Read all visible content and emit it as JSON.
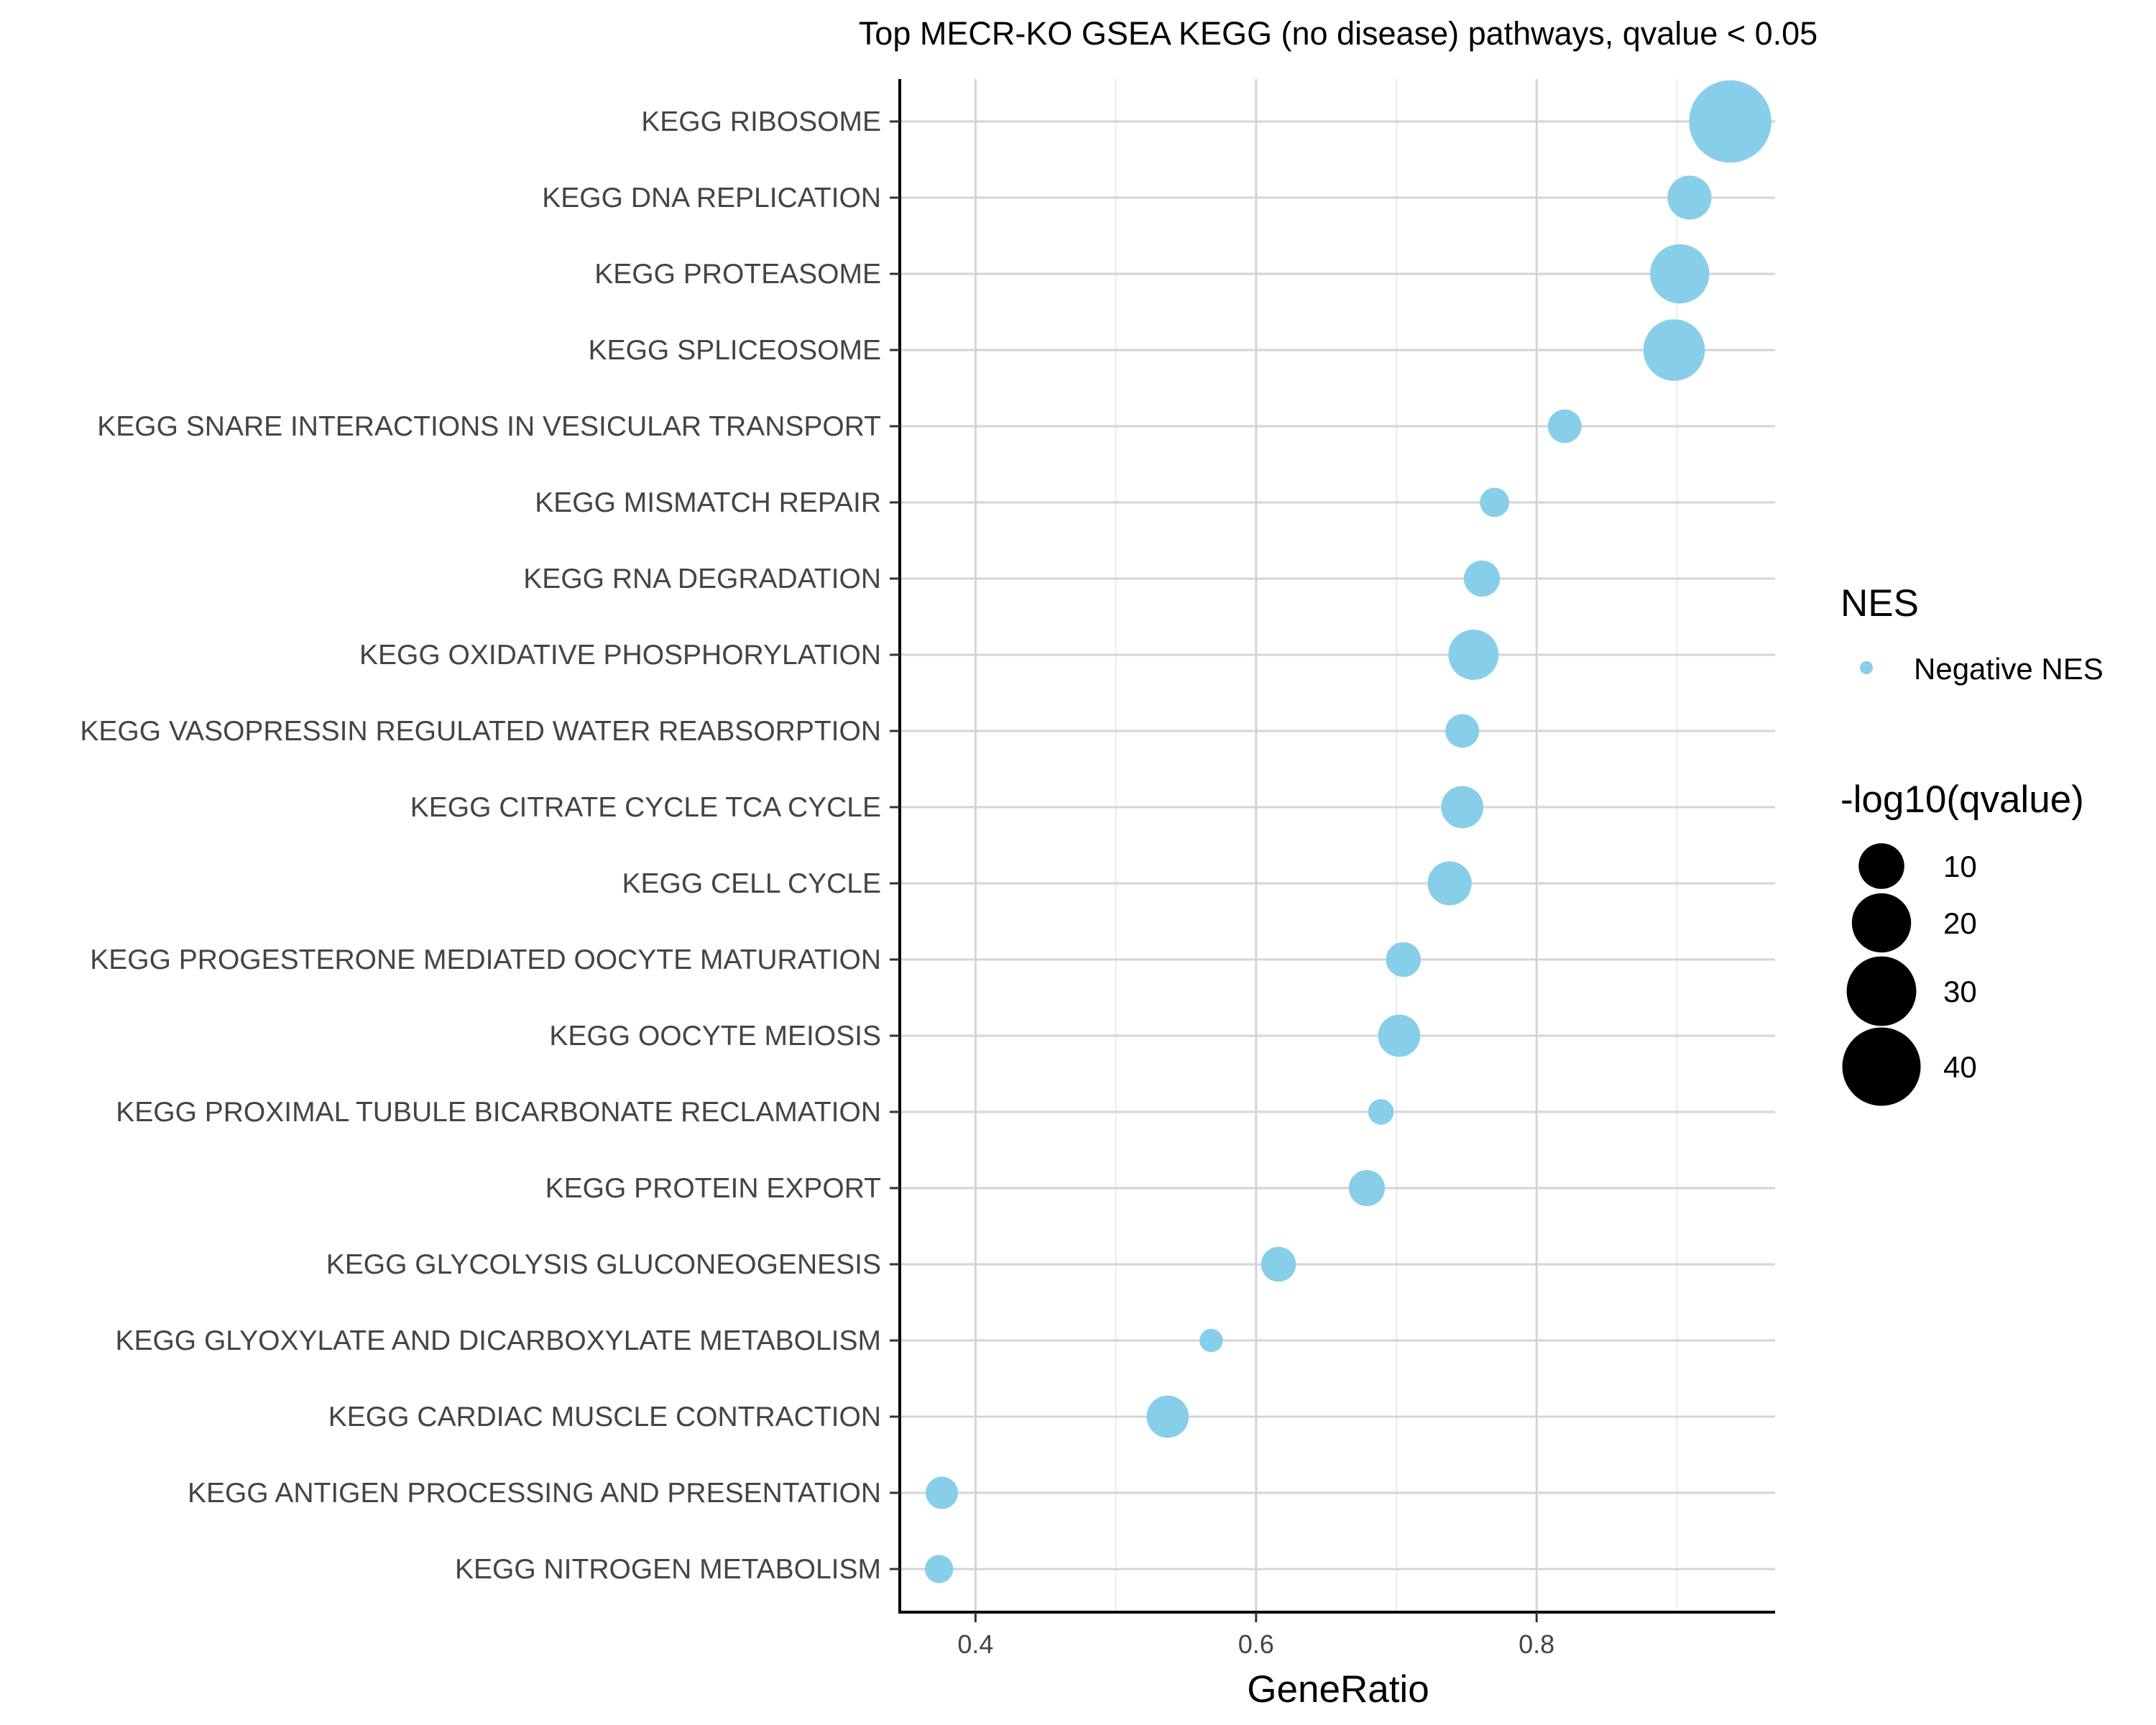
{
  "chart_data": {
    "type": "scatter",
    "title": "Top MECR-KO GSEA KEGG (no disease) pathways, qvalue < 0.05",
    "xlabel": "GeneRatio",
    "ylabel": "",
    "xlim": [
      0.346,
      0.97
    ],
    "xticks": [
      0.4,
      0.6,
      0.8
    ],
    "xtick_labels": [
      "0.4",
      "0.6",
      "0.8"
    ],
    "grid": true,
    "color": "#87CEEB",
    "legend_position": "right",
    "color_legend": {
      "title": "NES",
      "entries": [
        {
          "label": "Negative NES",
          "color": "#87CEEB"
        }
      ]
    },
    "size_legend": {
      "title": "-log10(qvalue)",
      "entries": [
        {
          "label": "10",
          "value": 10
        },
        {
          "label": "20",
          "value": 20
        },
        {
          "label": "30",
          "value": 30
        },
        {
          "label": "40",
          "value": 40
        }
      ]
    },
    "categories": [
      "KEGG RIBOSOME",
      "KEGG DNA REPLICATION",
      "KEGG PROTEASOME",
      "KEGG SPLICEOSOME",
      "KEGG SNARE INTERACTIONS IN VESICULAR TRANSPORT",
      "KEGG MISMATCH REPAIR",
      "KEGG RNA DEGRADATION",
      "KEGG OXIDATIVE PHOSPHORYLATION",
      "KEGG VASOPRESSIN REGULATED WATER REABSORPTION",
      "KEGG CITRATE CYCLE TCA CYCLE",
      "KEGG CELL CYCLE",
      "KEGG PROGESTERONE MEDIATED OOCYTE MATURATION",
      "KEGG OOCYTE MEIOSIS",
      "KEGG PROXIMAL TUBULE BICARBONATE RECLAMATION",
      "KEGG PROTEIN EXPORT",
      "KEGG GLYCOLYSIS GLUCONEOGENESIS",
      "KEGG GLYOXYLATE AND DICARBOXYLATE METABOLISM",
      "KEGG CARDIAC MUSCLE CONTRACTION",
      "KEGG ANTIGEN PROCESSING AND PRESENTATION",
      "KEGG NITROGEN METABOLISM"
    ],
    "series": [
      {
        "points": [
          {
            "pathway": "KEGG RIBOSOME",
            "gene_ratio": 0.938,
            "neg_log10_qvalue": 45
          },
          {
            "pathway": "KEGG DNA REPLICATION",
            "gene_ratio": 0.909,
            "neg_log10_qvalue": 9
          },
          {
            "pathway": "KEGG PROTEASOME",
            "gene_ratio": 0.902,
            "neg_log10_qvalue": 20
          },
          {
            "pathway": "KEGG SPLICEOSOME",
            "gene_ratio": 0.898,
            "neg_log10_qvalue": 22
          },
          {
            "pathway": "KEGG SNARE INTERACTIONS IN VESICULAR TRANSPORT",
            "gene_ratio": 0.82,
            "neg_log10_qvalue": 4
          },
          {
            "pathway": "KEGG MISMATCH REPAIR",
            "gene_ratio": 0.77,
            "neg_log10_qvalue": 2.5
          },
          {
            "pathway": "KEGG RNA DEGRADATION",
            "gene_ratio": 0.761,
            "neg_log10_qvalue": 5
          },
          {
            "pathway": "KEGG OXIDATIVE PHOSPHORYLATION",
            "gene_ratio": 0.755,
            "neg_log10_qvalue": 13
          },
          {
            "pathway": "KEGG VASOPRESSIN REGULATED WATER REABSORPTION",
            "gene_ratio": 0.747,
            "neg_log10_qvalue": 4
          },
          {
            "pathway": "KEGG CITRATE CYCLE TCA CYCLE",
            "gene_ratio": 0.747,
            "neg_log10_qvalue": 8
          },
          {
            "pathway": "KEGG CELL CYCLE",
            "gene_ratio": 0.738,
            "neg_log10_qvalue": 9
          },
          {
            "pathway": "KEGG PROGESTERONE MEDIATED OOCYTE MATURATION",
            "gene_ratio": 0.705,
            "neg_log10_qvalue": 4.5
          },
          {
            "pathway": "KEGG OOCYTE MEIOSIS",
            "gene_ratio": 0.702,
            "neg_log10_qvalue": 8
          },
          {
            "pathway": "KEGG PROXIMAL TUBULE BICARBONATE RECLAMATION",
            "gene_ratio": 0.689,
            "neg_log10_qvalue": 1.5
          },
          {
            "pathway": "KEGG PROTEIN EXPORT",
            "gene_ratio": 0.679,
            "neg_log10_qvalue": 5
          },
          {
            "pathway": "KEGG GLYCOLYSIS GLUCONEOGENESIS",
            "gene_ratio": 0.616,
            "neg_log10_qvalue": 4.5
          },
          {
            "pathway": "KEGG GLYOXYLATE AND DICARBOXYLATE METABOLISM",
            "gene_ratio": 0.568,
            "neg_log10_qvalue": 1
          },
          {
            "pathway": "KEGG CARDIAC MUSCLE CONTRACTION",
            "gene_ratio": 0.537,
            "neg_log10_qvalue": 8
          },
          {
            "pathway": "KEGG ANTIGEN PROCESSING AND PRESENTATION",
            "gene_ratio": 0.376,
            "neg_log10_qvalue": 3.5
          },
          {
            "pathway": "KEGG NITROGEN METABOLISM",
            "gene_ratio": 0.374,
            "neg_log10_qvalue": 2.2
          }
        ]
      }
    ]
  }
}
